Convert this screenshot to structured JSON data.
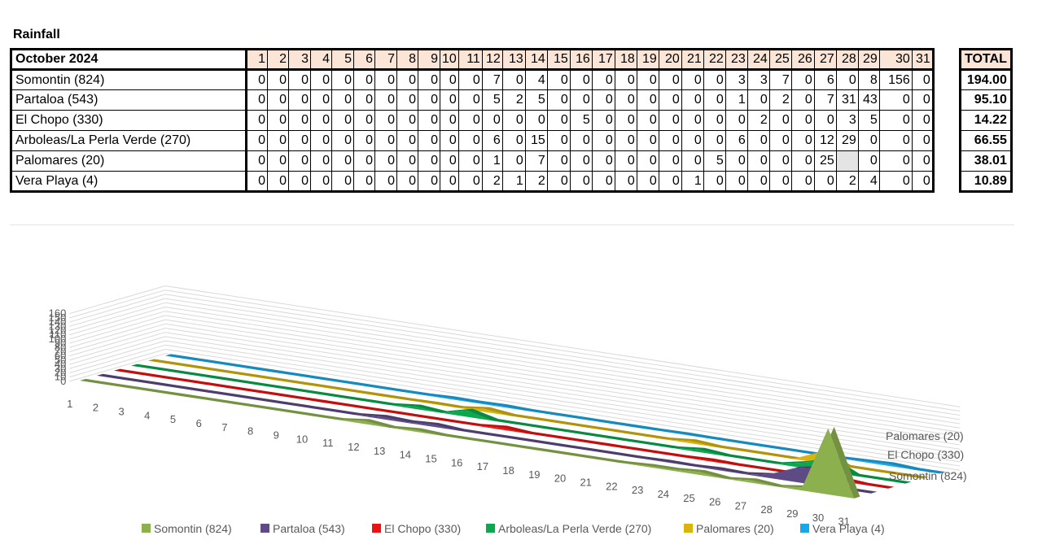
{
  "title": "Rainfall",
  "table": {
    "month_label": "October 2024",
    "days": [
      "1",
      "2",
      "3",
      "4",
      "5",
      "6",
      "7",
      "8",
      "9",
      "10",
      "11",
      "12",
      "13",
      "14",
      "15",
      "16",
      "17",
      "18",
      "19",
      "20",
      "21",
      "22",
      "23",
      "24",
      "25",
      "26",
      "27",
      "28",
      "29",
      "30",
      "31"
    ],
    "total_label": "TOTAL",
    "rows": [
      {
        "name": "Somontin (824)",
        "values": [
          "0",
          "0",
          "0",
          "0",
          "0",
          "0",
          "0",
          "0",
          "0",
          "0",
          "0",
          "7",
          "0",
          "4",
          "0",
          "0",
          "0",
          "0",
          "0",
          "0",
          "0",
          "0",
          "3",
          "3",
          "7",
          "0",
          "6",
          "0",
          "8",
          "156",
          "0"
        ],
        "total": "194.00"
      },
      {
        "name": "Partaloa (543)",
        "values": [
          "0",
          "0",
          "0",
          "0",
          "0",
          "0",
          "0",
          "0",
          "0",
          "0",
          "0",
          "5",
          "2",
          "5",
          "0",
          "0",
          "0",
          "0",
          "0",
          "0",
          "0",
          "0",
          "1",
          "0",
          "2",
          "0",
          "7",
          "31",
          "43",
          "0",
          "0"
        ],
        "total": "95.10"
      },
      {
        "name": "El Chopo (330)",
        "values": [
          "0",
          "0",
          "0",
          "0",
          "0",
          "0",
          "0",
          "0",
          "0",
          "0",
          "0",
          "0",
          "0",
          "0",
          "0",
          "5",
          "0",
          "0",
          "0",
          "0",
          "0",
          "0",
          "0",
          "2",
          "0",
          "0",
          "0",
          "3",
          "5",
          "0",
          "0"
        ],
        "total": "14.22"
      },
      {
        "name": "Arboleas/La Perla Verde (270)",
        "values": [
          "0",
          "0",
          "0",
          "0",
          "0",
          "0",
          "0",
          "0",
          "0",
          "0",
          "0",
          "6",
          "0",
          "15",
          "0",
          "0",
          "0",
          "0",
          "0",
          "0",
          "0",
          "0",
          "6",
          "0",
          "0",
          "0",
          "12",
          "29",
          "0",
          "0",
          "0"
        ],
        "total": "66.55"
      },
      {
        "name": "Palomares (20)",
        "values": [
          "0",
          "0",
          "0",
          "0",
          "0",
          "0",
          "0",
          "0",
          "0",
          "0",
          "0",
          "1",
          "0",
          "7",
          "0",
          "0",
          "0",
          "0",
          "0",
          "0",
          "0",
          "5",
          "0",
          "0",
          "0",
          "0",
          "25",
          "",
          "0",
          "0",
          "0"
        ],
        "total": "38.01"
      },
      {
        "name": "Vera Playa (4)",
        "values": [
          "0",
          "0",
          "0",
          "0",
          "0",
          "0",
          "0",
          "0",
          "0",
          "0",
          "0",
          "2",
          "1",
          "2",
          "0",
          "0",
          "0",
          "0",
          "0",
          "0",
          "1",
          "0",
          "0",
          "0",
          "0",
          "0",
          "0",
          "2",
          "4",
          "0",
          "0"
        ],
        "total": "10.89"
      }
    ]
  },
  "chart_data": {
    "type": "area",
    "categories": [
      "1",
      "2",
      "3",
      "4",
      "5",
      "6",
      "7",
      "8",
      "9",
      "10",
      "11",
      "12",
      "13",
      "14",
      "15",
      "16",
      "17",
      "18",
      "19",
      "20",
      "21",
      "22",
      "23",
      "24",
      "25",
      "26",
      "27",
      "28",
      "29",
      "30",
      "31"
    ],
    "y_ticks": [
      "0",
      "10",
      "20",
      "30",
      "40",
      "50",
      "60",
      "70",
      "80",
      "90",
      "100",
      "110",
      "120",
      "130",
      "140",
      "150",
      "160"
    ],
    "ylim": [
      0,
      160
    ],
    "depth_labels": [
      "Palomares (20)",
      "El Chopo (330)",
      "Somontin (824)"
    ],
    "legend_position": "bottom",
    "grid": true,
    "series": [
      {
        "name": "Somontin (824)",
        "color": "#8db04f",
        "values": [
          0,
          0,
          0,
          0,
          0,
          0,
          0,
          0,
          0,
          0,
          0,
          7,
          0,
          4,
          0,
          0,
          0,
          0,
          0,
          0,
          0,
          0,
          3,
          3,
          7,
          0,
          6,
          0,
          8,
          156,
          0
        ]
      },
      {
        "name": "Partaloa (543)",
        "color": "#5e4a84",
        "values": [
          0,
          0,
          0,
          0,
          0,
          0,
          0,
          0,
          0,
          0,
          0,
          5,
          2,
          5,
          0,
          0,
          0,
          0,
          0,
          0,
          0,
          0,
          1,
          0,
          2,
          0,
          7,
          31,
          43,
          0,
          0
        ]
      },
      {
        "name": "El Chopo (330)",
        "color": "#ee1111",
        "values": [
          0,
          0,
          0,
          0,
          0,
          0,
          0,
          0,
          0,
          0,
          0,
          0,
          0,
          0,
          0,
          5,
          0,
          0,
          0,
          0,
          0,
          0,
          0,
          2,
          0,
          0,
          0,
          3,
          5,
          0,
          0
        ]
      },
      {
        "name": "Arboleas/La Perla Verde (270)",
        "color": "#0aa84f",
        "values": [
          0,
          0,
          0,
          0,
          0,
          0,
          0,
          0,
          0,
          0,
          0,
          6,
          0,
          15,
          0,
          0,
          0,
          0,
          0,
          0,
          0,
          0,
          6,
          0,
          0,
          0,
          12,
          29,
          0,
          0,
          0
        ]
      },
      {
        "name": "Palomares (20)",
        "color": "#d8b40c",
        "values": [
          0,
          0,
          0,
          0,
          0,
          0,
          0,
          0,
          0,
          0,
          0,
          1,
          0,
          7,
          0,
          0,
          0,
          0,
          0,
          0,
          0,
          5,
          0,
          0,
          0,
          0,
          25,
          0,
          0,
          0,
          0
        ]
      },
      {
        "name": "Vera Playa (4)",
        "color": "#18a8e8",
        "values": [
          0,
          0,
          0,
          0,
          0,
          0,
          0,
          0,
          0,
          0,
          0,
          2,
          1,
          2,
          0,
          0,
          0,
          0,
          0,
          0,
          1,
          0,
          0,
          0,
          0,
          0,
          0,
          2,
          4,
          0,
          0
        ]
      }
    ]
  }
}
